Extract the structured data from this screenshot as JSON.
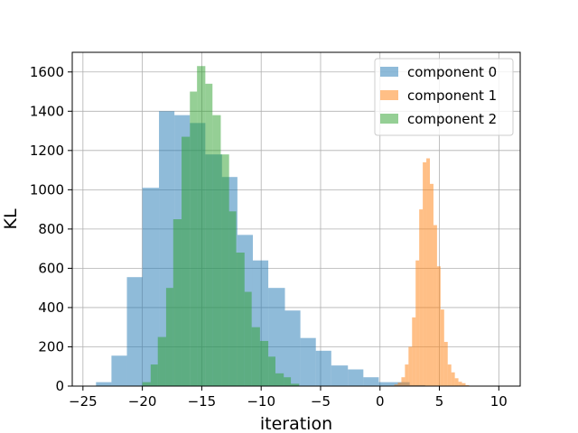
{
  "chart_data": {
    "type": "histogram",
    "xlabel": "iteration",
    "ylabel": "KL",
    "xlim": [
      -25.9,
      11.8
    ],
    "ylim": [
      0,
      1700
    ],
    "xticks": [
      -25,
      -20,
      -15,
      -10,
      -5,
      0,
      5,
      10
    ],
    "xtick_labels": [
      "−25",
      "−20",
      "−15",
      "−10",
      "−5",
      "0",
      "5",
      "10"
    ],
    "yticks": [
      0,
      200,
      400,
      600,
      800,
      1000,
      1200,
      1400,
      1600
    ],
    "ytick_labels": [
      "0",
      "200",
      "400",
      "600",
      "800",
      "1000",
      "1200",
      "1400",
      "1600"
    ],
    "grid": true,
    "legend_position": "top-right",
    "alpha": 0.5,
    "series": [
      {
        "name": "component 0",
        "color": "#1f77b4",
        "bins": [
          [
            -23.9,
            -22.6,
            20
          ],
          [
            -22.6,
            -21.3,
            155
          ],
          [
            -21.3,
            -20.0,
            555
          ],
          [
            -20.0,
            -18.6,
            1010
          ],
          [
            -18.6,
            -17.3,
            1400
          ],
          [
            -17.3,
            -16.0,
            1380
          ],
          [
            -16.0,
            -14.7,
            1340
          ],
          [
            -14.7,
            -13.3,
            1180
          ],
          [
            -13.3,
            -12.0,
            1065
          ],
          [
            -12.0,
            -10.7,
            770
          ],
          [
            -10.7,
            -9.4,
            640
          ],
          [
            -9.4,
            -8.0,
            500
          ],
          [
            -8.0,
            -6.7,
            385
          ],
          [
            -6.7,
            -5.4,
            245
          ],
          [
            -5.4,
            -4.1,
            180
          ],
          [
            -4.1,
            -2.7,
            105
          ],
          [
            -2.7,
            -1.4,
            85
          ],
          [
            -1.4,
            -0.1,
            45
          ],
          [
            -0.1,
            1.2,
            20
          ],
          [
            1.2,
            2.5,
            20
          ],
          [
            2.5,
            3.8,
            5
          ]
        ]
      },
      {
        "name": "component 1",
        "color": "#ff7f0e",
        "bins": [
          [
            1.2,
            1.5,
            8
          ],
          [
            1.5,
            1.8,
            18
          ],
          [
            1.8,
            2.1,
            45
          ],
          [
            2.1,
            2.4,
            110
          ],
          [
            2.4,
            2.7,
            200
          ],
          [
            2.7,
            3.0,
            350
          ],
          [
            3.0,
            3.3,
            640
          ],
          [
            3.3,
            3.6,
            900
          ],
          [
            3.6,
            3.9,
            1140
          ],
          [
            3.9,
            4.2,
            1160
          ],
          [
            4.2,
            4.5,
            1030
          ],
          [
            4.5,
            4.8,
            820
          ],
          [
            4.8,
            5.1,
            610
          ],
          [
            5.1,
            5.4,
            390
          ],
          [
            5.4,
            5.7,
            225
          ],
          [
            5.7,
            6.0,
            110
          ],
          [
            6.0,
            6.3,
            70
          ],
          [
            6.3,
            6.6,
            40
          ],
          [
            6.6,
            6.9,
            22
          ],
          [
            6.9,
            7.2,
            15
          ],
          [
            7.2,
            7.5,
            5
          ]
        ]
      },
      {
        "name": "component 2",
        "color": "#2ca02c",
        "bins": [
          [
            -20.0,
            -19.3,
            20
          ],
          [
            -19.3,
            -18.7,
            110
          ],
          [
            -18.7,
            -18.0,
            250
          ],
          [
            -18.0,
            -17.4,
            500
          ],
          [
            -17.4,
            -16.7,
            850
          ],
          [
            -16.7,
            -16.0,
            1270
          ],
          [
            -16.0,
            -15.4,
            1500
          ],
          [
            -15.4,
            -14.7,
            1630
          ],
          [
            -14.7,
            -14.1,
            1540
          ],
          [
            -14.1,
            -13.4,
            1380
          ],
          [
            -13.4,
            -12.7,
            1180
          ],
          [
            -12.7,
            -12.1,
            890
          ],
          [
            -12.1,
            -11.4,
            680
          ],
          [
            -11.4,
            -10.8,
            480
          ],
          [
            -10.8,
            -10.1,
            300
          ],
          [
            -10.1,
            -9.4,
            230
          ],
          [
            -9.4,
            -8.8,
            150
          ],
          [
            -8.8,
            -8.1,
            65
          ],
          [
            -8.1,
            -7.5,
            45
          ],
          [
            -7.5,
            -6.8,
            12
          ]
        ]
      }
    ]
  }
}
